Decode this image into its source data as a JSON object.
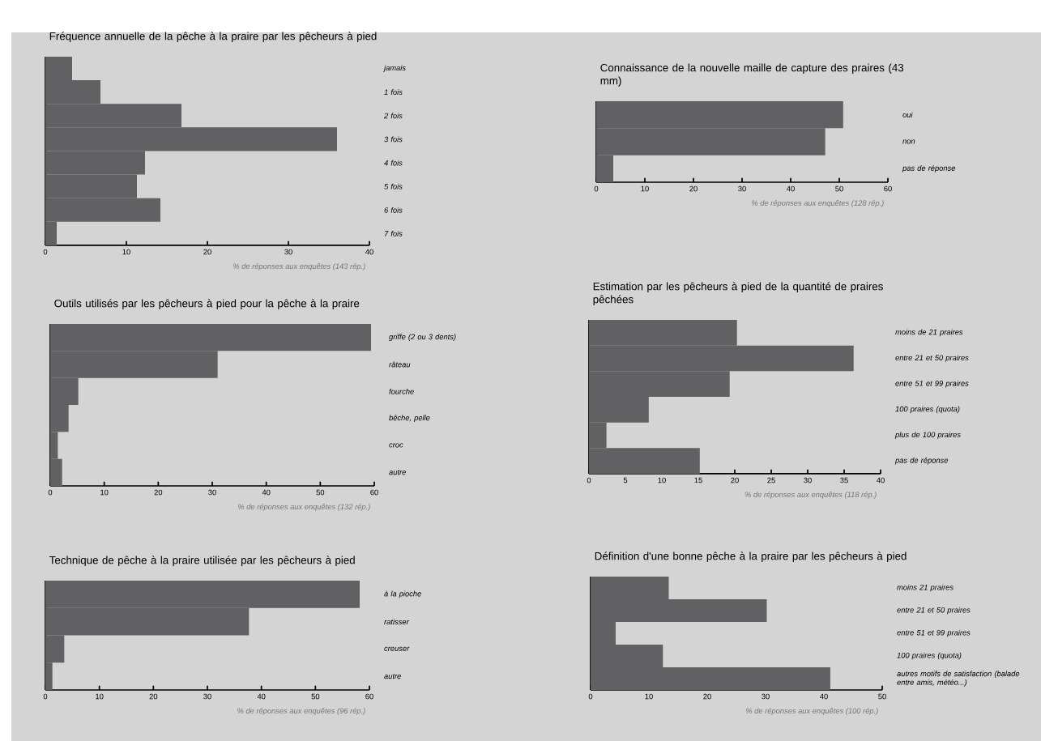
{
  "chart_data": [
    {
      "type": "bar",
      "orientation": "horizontal",
      "title": "Fréquence annuelle de la pêche à la praire par les pêcheurs à pied",
      "xlabel": "% de réponses aux enquêtes (143 rép.)",
      "categories": [
        "jamais",
        "1 fois",
        "2 fois",
        "3 fois",
        "4 fois",
        "5 fois",
        "6 fois",
        "7 fois"
      ],
      "values": [
        3.3,
        6.8,
        16.8,
        36.0,
        12.3,
        11.3,
        14.2,
        1.4
      ],
      "color": "#616163",
      "xlim": [
        0,
        40
      ],
      "xticks": [
        0,
        10,
        20,
        30,
        40
      ]
    },
    {
      "type": "bar",
      "orientation": "horizontal",
      "title": "Outils utilisés par les pêcheurs à pied pour la pêche à la praire",
      "xlabel": "% de réponses aux enquêtes (132 rép.)",
      "categories": [
        "griffe (2 ou 3 dents)",
        "râteau",
        "fourche",
        "bêche, pelle",
        "croc",
        "autre"
      ],
      "values": [
        59.4,
        31.0,
        5.2,
        3.4,
        1.4,
        2.2
      ],
      "color": "#616163",
      "xlim": [
        0,
        60
      ],
      "xticks": [
        0,
        10,
        20,
        30,
        40,
        50,
        60
      ]
    },
    {
      "type": "bar",
      "orientation": "horizontal",
      "title": "Technique de pêche à la praire utilisée par les pêcheurs à pied",
      "xlabel": "% de réponses aux enquêtes (96 rép.)",
      "categories": [
        "à la pioche",
        "ratisser",
        "creuser",
        "autre"
      ],
      "values": [
        58.2,
        37.7,
        3.5,
        1.3
      ],
      "color": "#616163",
      "xlim": [
        0,
        60
      ],
      "xticks": [
        0,
        10,
        20,
        30,
        40,
        50,
        60
      ]
    },
    {
      "type": "bar",
      "orientation": "horizontal",
      "title": "Connaissance de la nouvelle maille de capture des praires (43 mm)",
      "xlabel": "% de réponses aux enquêtes (128 rép.)",
      "categories": [
        "oui",
        "non",
        "pas de réponse"
      ],
      "values": [
        50.8,
        47.1,
        3.5
      ],
      "color": "#616163",
      "xlim": [
        0,
        60
      ],
      "xticks": [
        0,
        10,
        20,
        30,
        40,
        50,
        60
      ]
    },
    {
      "type": "bar",
      "orientation": "horizontal",
      "title": "Estimation par les pêcheurs à pied de la quantité de praires pêchées",
      "xlabel": "% de réponses aux enquêtes (118 rép.)",
      "categories": [
        "moins de 21 praires",
        "entre 21 et 50 praires",
        "entre 51 et 99 praires",
        "100 praires (quota)",
        "plus de 100 praires",
        "pas de réponse"
      ],
      "values": [
        20.3,
        36.3,
        19.3,
        8.2,
        2.4,
        15.2
      ],
      "color": "#616163",
      "xlim": [
        0,
        40
      ],
      "xticks": [
        0,
        5,
        10,
        15,
        20,
        25,
        30,
        35,
        40
      ]
    },
    {
      "type": "bar",
      "orientation": "horizontal",
      "title": "Définition d'une bonne pêche à la praire par les pêcheurs à pied",
      "xlabel": "% de réponses aux enquêtes (100 rép.)",
      "categories": [
        "moins 21 praires",
        "entre 21 et 50 praires",
        "entre 51 et 99 praires",
        "100 praires (quota)",
        "autres motifs de satisfaction (balade entre amis, météo...)"
      ],
      "values": [
        13.4,
        30.2,
        4.3,
        12.4,
        41.1
      ],
      "color": "#616163",
      "xlim": [
        0,
        50
      ],
      "xticks": [
        0,
        10,
        20,
        30,
        40,
        50
      ]
    }
  ]
}
